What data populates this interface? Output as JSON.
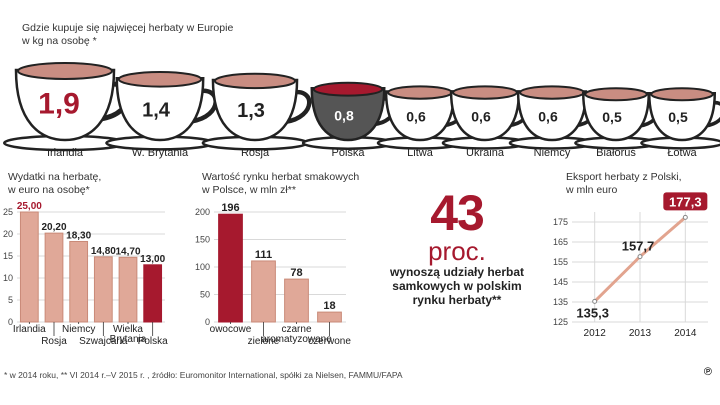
{
  "cups": {
    "title": "Gdzie kupuje się najwięcej herbaty w Europie",
    "subtitle": "w kg na osobę *",
    "items": [
      {
        "country": "Irlandia",
        "value": "1,9",
        "num": 1.9,
        "highlight": true
      },
      {
        "country": "W. Brytania",
        "value": "1,4",
        "num": 1.4
      },
      {
        "country": "Rosja",
        "value": "1,3",
        "num": 1.3
      },
      {
        "country": "Polska",
        "value": "0,8",
        "num": 0.8,
        "dark": true
      },
      {
        "country": "Litwa",
        "value": "0,6",
        "num": 0.6
      },
      {
        "country": "Ukraina",
        "value": "0,6",
        "num": 0.6
      },
      {
        "country": "Niemcy",
        "value": "0,6",
        "num": 0.6
      },
      {
        "country": "Białoruś",
        "value": "0,5",
        "num": 0.5
      },
      {
        "country": "Łotwa",
        "value": "0,5",
        "num": 0.5
      }
    ]
  },
  "chart_data": [
    {
      "type": "bar",
      "title": "Wydatki na herbatę,",
      "subtitle": "w euro na osobę*",
      "categories": [
        "Irlandia",
        "Rosja",
        "Niemcy",
        "Szwajcaria",
        "Wielka Brytania",
        "Polska"
      ],
      "category_lines": [
        [
          "Irlandia"
        ],
        [
          "Rosja"
        ],
        [
          "Niemcy"
        ],
        [
          "Szwajcaria"
        ],
        [
          "Wielka",
          "Brytania"
        ],
        [
          "Polska"
        ]
      ],
      "values": [
        25.0,
        20.2,
        18.3,
        14.8,
        14.7,
        13.0
      ],
      "value_labels": [
        "25,00",
        "20,20",
        "18,30",
        "14,80",
        "14,70",
        "13,00"
      ],
      "ylim": [
        0,
        25
      ],
      "yticks": [
        0,
        5,
        10,
        15,
        20,
        25
      ],
      "grid": true
    },
    {
      "type": "bar",
      "title": "Wartość rynku herbat smakowych",
      "subtitle": "w Polsce, w mln zł**",
      "categories": [
        "owocowe",
        "zielone",
        "czarne aromatyzowane",
        "czerwone"
      ],
      "category_lines": [
        [
          "owocowe"
        ],
        [
          "zielone"
        ],
        [
          "czarne",
          "aromatyzowane"
        ],
        [
          "czerwone"
        ]
      ],
      "values": [
        196,
        111,
        78,
        18
      ],
      "value_labels": [
        "196",
        "111",
        "78",
        "18"
      ],
      "ylim": [
        0,
        200
      ],
      "yticks": [
        0,
        50,
        100,
        150,
        200
      ],
      "grid": true
    },
    {
      "type": "line",
      "title": "Eksport herbaty z Polski,",
      "subtitle": "w mln euro",
      "x": [
        "2012",
        "2013",
        "2014"
      ],
      "series": [
        {
          "values": [
            135.3,
            157.7,
            177.3
          ]
        }
      ],
      "value_labels": [
        "135,3",
        "157,7",
        "177,3"
      ],
      "ylim": [
        125,
        180
      ],
      "yticks": [
        125,
        135,
        145,
        155,
        165,
        175
      ],
      "grid": true
    }
  ],
  "highlight": {
    "number": "43",
    "unit": "proc.",
    "description": "wynoszą udziały herbat samkowych w polskim rynku herbaty**"
  },
  "footnote": "* w 2014 roku, ** VI 2014 r.–V 2015 r. , źródło: Euromonitor International, spółki za Nielsen, FAMMU/FAPA",
  "credit": "℗",
  "colors": {
    "accent": "#a6192e",
    "bar": "#e0a898",
    "bar_stroke": "#c98a78",
    "line": "#e2a48f",
    "grid": "#d9d9d9",
    "tea": "#c98d82",
    "tea_dark": "#a6192e"
  }
}
